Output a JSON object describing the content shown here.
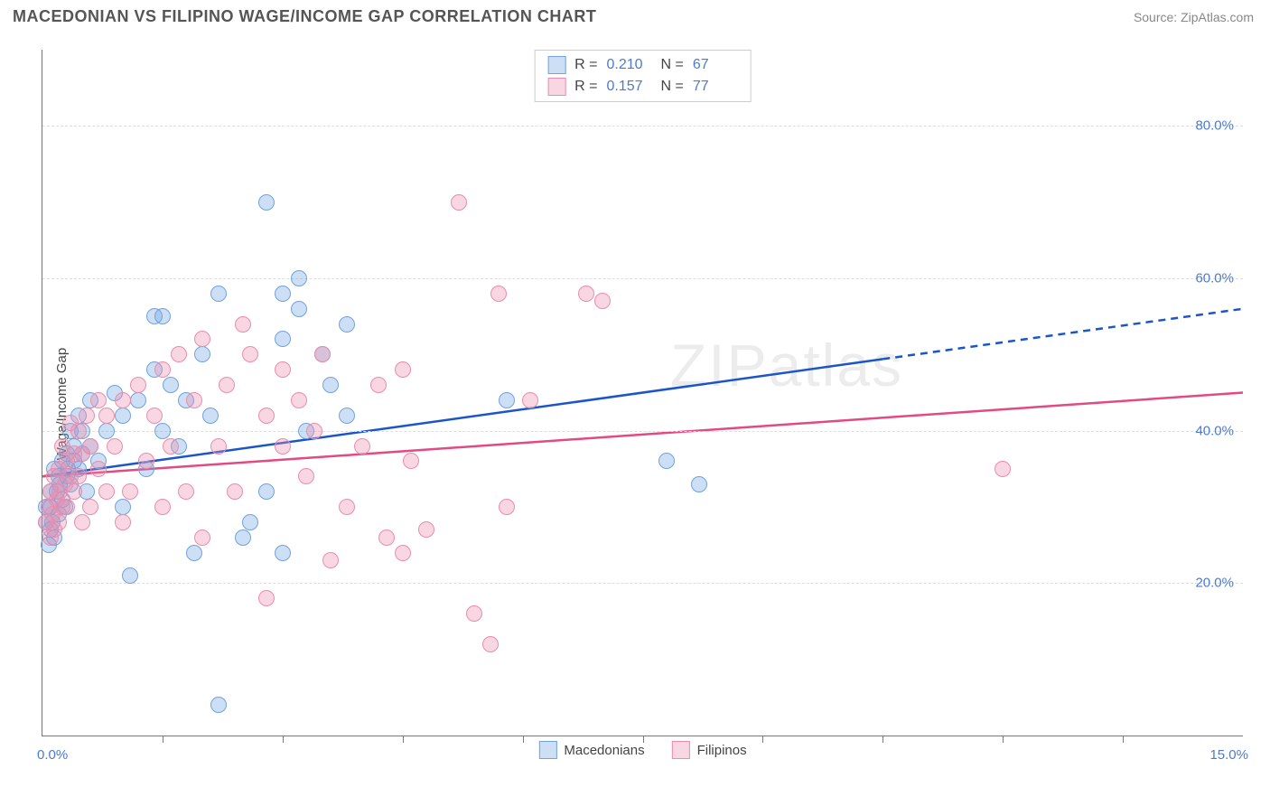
{
  "header": {
    "title": "MACEDONIAN VS FILIPINO WAGE/INCOME GAP CORRELATION CHART",
    "source_prefix": "Source: ",
    "source_link": "ZipAtlas.com"
  },
  "watermark": "ZIPatlas",
  "chart": {
    "type": "scatter",
    "y_axis_label": "Wage/Income Gap",
    "xlim": [
      0,
      15
    ],
    "ylim": [
      0,
      90
    ],
    "x_lim_labels": {
      "min": "0.0%",
      "max": "15.0%"
    },
    "y_gridlines": [
      {
        "value": 20,
        "label": "20.0%"
      },
      {
        "value": 40,
        "label": "40.0%"
      },
      {
        "value": 60,
        "label": "60.0%"
      },
      {
        "value": 80,
        "label": "80.0%"
      }
    ],
    "x_ticks": [
      1.5,
      3.0,
      4.5,
      6.0,
      7.5,
      9.0,
      10.5,
      12.0,
      13.5
    ],
    "background_color": "#ffffff",
    "grid_color": "#dddddd",
    "axis_color": "#777777",
    "tick_label_color": "#4a7bd0",
    "marker_radius": 9,
    "marker_stroke_width": 1.5,
    "series": [
      {
        "key": "macedonians",
        "label": "Macedonians",
        "color_fill": "rgba(112,163,224,0.35)",
        "color_stroke": "#70a3e0",
        "R": "0.210",
        "N": "67",
        "regression": {
          "x1": 0,
          "y1": 34,
          "x2": 10.5,
          "y2": 51,
          "x2_ext": 15,
          "y2_ext": 56,
          "color": "#1a56c9",
          "width": 2.5,
          "dash_after_x": 10.5
        },
        "points": [
          [
            0.05,
            28
          ],
          [
            0.05,
            30
          ],
          [
            0.08,
            25
          ],
          [
            0.1,
            27
          ],
          [
            0.1,
            30
          ],
          [
            0.1,
            32
          ],
          [
            0.12,
            28
          ],
          [
            0.15,
            26
          ],
          [
            0.15,
            35
          ],
          [
            0.18,
            32
          ],
          [
            0.2,
            29
          ],
          [
            0.2,
            34
          ],
          [
            0.22,
            33
          ],
          [
            0.25,
            31
          ],
          [
            0.25,
            36
          ],
          [
            0.28,
            30
          ],
          [
            0.3,
            34
          ],
          [
            0.3,
            37
          ],
          [
            0.32,
            35
          ],
          [
            0.35,
            33
          ],
          [
            0.35,
            40
          ],
          [
            0.4,
            36
          ],
          [
            0.4,
            38
          ],
          [
            0.45,
            35
          ],
          [
            0.45,
            42
          ],
          [
            0.5,
            37
          ],
          [
            0.5,
            40
          ],
          [
            0.55,
            32
          ],
          [
            0.6,
            38
          ],
          [
            0.6,
            44
          ],
          [
            0.7,
            36
          ],
          [
            0.8,
            40
          ],
          [
            0.9,
            45
          ],
          [
            1.0,
            30
          ],
          [
            1.0,
            42
          ],
          [
            1.1,
            21
          ],
          [
            1.2,
            44
          ],
          [
            1.3,
            35
          ],
          [
            1.4,
            48
          ],
          [
            1.5,
            40
          ],
          [
            1.5,
            55
          ],
          [
            1.6,
            46
          ],
          [
            1.7,
            38
          ],
          [
            1.8,
            44
          ],
          [
            1.9,
            24
          ],
          [
            2.0,
            50
          ],
          [
            2.1,
            42
          ],
          [
            2.2,
            58
          ],
          [
            2.2,
            4
          ],
          [
            2.8,
            70
          ],
          [
            3.0,
            52
          ],
          [
            3.0,
            58
          ],
          [
            3.2,
            60
          ],
          [
            3.2,
            56
          ],
          [
            3.3,
            40
          ],
          [
            3.5,
            50
          ],
          [
            3.6,
            46
          ],
          [
            3.8,
            42
          ],
          [
            3.8,
            54
          ],
          [
            2.5,
            26
          ],
          [
            2.6,
            28
          ],
          [
            2.8,
            32
          ],
          [
            3.0,
            24
          ],
          [
            5.8,
            44
          ],
          [
            7.8,
            36
          ],
          [
            8.2,
            33
          ],
          [
            1.4,
            55
          ]
        ]
      },
      {
        "key": "filipinos",
        "label": "Filipinos",
        "color_fill": "rgba(236,140,172,0.35)",
        "color_stroke": "#ec8cac",
        "R": "0.157",
        "N": "77",
        "regression": {
          "x1": 0,
          "y1": 34,
          "x2": 15,
          "y2": 45,
          "x2_ext": 15,
          "y2_ext": 45,
          "color": "#e24a84",
          "width": 2.5,
          "dash_after_x": 15
        },
        "points": [
          [
            0.05,
            28
          ],
          [
            0.08,
            30
          ],
          [
            0.1,
            26
          ],
          [
            0.1,
            32
          ],
          [
            0.12,
            29
          ],
          [
            0.15,
            27
          ],
          [
            0.15,
            34
          ],
          [
            0.18,
            31
          ],
          [
            0.2,
            28
          ],
          [
            0.2,
            35
          ],
          [
            0.22,
            32
          ],
          [
            0.25,
            30
          ],
          [
            0.25,
            38
          ],
          [
            0.28,
            33
          ],
          [
            0.3,
            30
          ],
          [
            0.3,
            36
          ],
          [
            0.35,
            34
          ],
          [
            0.35,
            41
          ],
          [
            0.4,
            37
          ],
          [
            0.4,
            32
          ],
          [
            0.45,
            34
          ],
          [
            0.45,
            40
          ],
          [
            0.5,
            28
          ],
          [
            0.5,
            37
          ],
          [
            0.55,
            42
          ],
          [
            0.6,
            30
          ],
          [
            0.6,
            38
          ],
          [
            0.7,
            35
          ],
          [
            0.7,
            44
          ],
          [
            0.8,
            32
          ],
          [
            0.8,
            42
          ],
          [
            0.9,
            38
          ],
          [
            1.0,
            28
          ],
          [
            1.0,
            44
          ],
          [
            1.1,
            32
          ],
          [
            1.2,
            46
          ],
          [
            1.3,
            36
          ],
          [
            1.4,
            42
          ],
          [
            1.5,
            30
          ],
          [
            1.5,
            48
          ],
          [
            1.6,
            38
          ],
          [
            1.7,
            50
          ],
          [
            1.8,
            32
          ],
          [
            1.9,
            44
          ],
          [
            2.0,
            26
          ],
          [
            2.0,
            52
          ],
          [
            2.2,
            38
          ],
          [
            2.3,
            46
          ],
          [
            2.4,
            32
          ],
          [
            2.5,
            54
          ],
          [
            2.6,
            50
          ],
          [
            2.8,
            42
          ],
          [
            2.8,
            18
          ],
          [
            3.0,
            48
          ],
          [
            3.0,
            38
          ],
          [
            3.2,
            44
          ],
          [
            3.3,
            34
          ],
          [
            3.4,
            40
          ],
          [
            3.5,
            50
          ],
          [
            3.6,
            23
          ],
          [
            3.8,
            30
          ],
          [
            4.0,
            38
          ],
          [
            4.2,
            46
          ],
          [
            4.3,
            26
          ],
          [
            4.5,
            24
          ],
          [
            4.5,
            48
          ],
          [
            4.6,
            36
          ],
          [
            4.8,
            27
          ],
          [
            5.2,
            70
          ],
          [
            5.4,
            16
          ],
          [
            5.6,
            12
          ],
          [
            5.7,
            58
          ],
          [
            5.8,
            30
          ],
          [
            6.1,
            44
          ],
          [
            6.8,
            58
          ],
          [
            7.0,
            57
          ],
          [
            12.0,
            35
          ]
        ]
      }
    ]
  },
  "legend_top": {
    "rows": [
      {
        "swatch_fill": "rgba(112,163,224,0.35)",
        "swatch_stroke": "#70a3e0",
        "r_label": "R =",
        "r_value": "0.210",
        "n_label": "N =",
        "n_value": "67"
      },
      {
        "swatch_fill": "rgba(236,140,172,0.35)",
        "swatch_stroke": "#ec8cac",
        "r_label": "R =",
        "r_value": "0.157",
        "n_label": "N =",
        "n_value": "77"
      }
    ]
  },
  "legend_bottom": {
    "items": [
      {
        "swatch_fill": "rgba(112,163,224,0.35)",
        "swatch_stroke": "#70a3e0",
        "label": "Macedonians"
      },
      {
        "swatch_fill": "rgba(236,140,172,0.35)",
        "swatch_stroke": "#ec8cac",
        "label": "Filipinos"
      }
    ]
  }
}
